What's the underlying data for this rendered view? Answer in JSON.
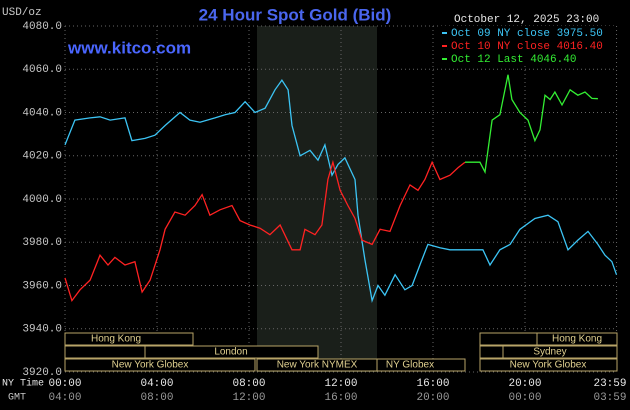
{
  "chart_data": {
    "type": "line",
    "title": "24 Hour Spot Gold (Bid)",
    "url_text": "www.kitco.com",
    "timestamp": "October 12, 2025 23:00",
    "y_label": "USD/oz",
    "x_axis_labels": [
      "NY Time",
      "GMT"
    ],
    "xlim": [
      0,
      24
    ],
    "xticks": [
      {
        "value": 0,
        "label": "00:00"
      },
      {
        "value": 4,
        "label": "04:00"
      },
      {
        "value": 8,
        "label": "08:00"
      },
      {
        "value": 12,
        "label": "12:00"
      },
      {
        "value": 16,
        "label": "16:00"
      },
      {
        "value": 20,
        "label": "20:00"
      },
      {
        "value": 23.98,
        "label": "23:59"
      }
    ],
    "gmt_labels": [
      "04:00",
      "08:00",
      "12:00",
      "16:00",
      "20:00",
      "00:00",
      "03:59"
    ],
    "ylim": [
      3920,
      4080
    ],
    "yticks": [
      {
        "value": 3920,
        "label": "3920.0"
      },
      {
        "value": 3940,
        "label": "3940.0"
      },
      {
        "value": 3960,
        "label": "3960.0"
      },
      {
        "value": 3980,
        "label": "3980.0"
      },
      {
        "value": 4000,
        "label": "4000.0"
      },
      {
        "value": 4020,
        "label": "4020.0"
      },
      {
        "value": 4040,
        "label": "4040.0"
      },
      {
        "value": 4060,
        "label": "4060.0"
      },
      {
        "value": 4080,
        "label": "4080.0"
      }
    ],
    "grid": true,
    "series": [
      {
        "name": "Oct 09 NY close 3975.50",
        "color": "#3cc4f4",
        "x": [
          0,
          0.43,
          1.09,
          1.52,
          1.96,
          2.61,
          2.91,
          3.48,
          3.91,
          4.35,
          5,
          5.43,
          5.87,
          6.52,
          6.96,
          7.39,
          7.83,
          8.26,
          8.7,
          9.13,
          9.43,
          9.7,
          9.87,
          10.22,
          10.65,
          11,
          11.3,
          11.61,
          11.87,
          12.17,
          12.61,
          12.74,
          13.04,
          13.35,
          13.61,
          13.91,
          14.35,
          14.78,
          15.09,
          15.43,
          15.78,
          16.3,
          16.74,
          17.17,
          17.61,
          18.17,
          18.48,
          18.91,
          19.35,
          19.78,
          20.43,
          21,
          21.43,
          21.87,
          22.3,
          22.74,
          23.17,
          23.48,
          23.78,
          23.98
        ],
        "values": [
          4025,
          4036.5,
          4037.5,
          4038,
          4036.5,
          4037.5,
          4027,
          4028,
          4029.5,
          4034,
          4040,
          4036.5,
          4035.5,
          4037.5,
          4039,
          4040,
          4045,
          4040,
          4042,
          4050.5,
          4055,
          4050.5,
          4034,
          4020,
          4022.5,
          4018,
          4025,
          4011,
          4016,
          4019,
          4009,
          3992.5,
          3972,
          3953,
          3960,
          3955.5,
          3965,
          3958,
          3960,
          3969.5,
          3979,
          3977.5,
          3976.5,
          3976.5,
          3976.5,
          3976.5,
          3969.5,
          3976.5,
          3979,
          3986,
          3991,
          3992.5,
          3989.5,
          3976.5,
          3981,
          3985,
          3979,
          3974,
          3971,
          3965
        ]
      },
      {
        "name": "Oct 10 NY close 4016.40",
        "color": "#ff2222",
        "x": [
          0,
          0.3,
          0.65,
          1.09,
          1.52,
          1.87,
          2.17,
          2.61,
          3.04,
          3.35,
          3.7,
          4.13,
          4.35,
          4.78,
          5.22,
          5.65,
          5.96,
          6.3,
          6.74,
          7.26,
          7.61,
          8.04,
          8.48,
          8.91,
          9.35,
          9.87,
          10.22,
          10.43,
          10.87,
          11.17,
          11.43,
          11.65,
          11.96,
          12.3,
          12.61,
          12.91,
          13.35,
          13.7,
          14.13,
          14.57,
          15,
          15.35,
          15.65,
          15.96,
          16.3,
          16.74,
          17.09,
          17.39
        ],
        "values": [
          3963.5,
          3953,
          3958,
          3962.5,
          3974,
          3969.5,
          3973,
          3969.5,
          3971,
          3957,
          3962.5,
          3976.5,
          3986,
          3994,
          3992.5,
          3997,
          4002,
          3992.5,
          3995,
          3997,
          3990,
          3988,
          3986.5,
          3983.5,
          3988,
          3976.5,
          3976.5,
          3986,
          3983.5,
          3988,
          4009,
          4017,
          4004,
          3997,
          3991,
          3981,
          3979,
          3986,
          3985,
          3997,
          4006.5,
          4004,
          4009,
          4017,
          4009,
          4011,
          4014.5,
          4017
        ]
      },
      {
        "name": "Oct 12 Last 4046.40",
        "color": "#33ee33",
        "x": [
          17.39,
          18.04,
          18.26,
          18.57,
          18.91,
          19.26,
          19.43,
          19.78,
          20.13,
          20.43,
          20.65,
          20.87,
          21.09,
          21.3,
          21.61,
          21.96,
          22.3,
          22.61,
          22.91,
          23.17
        ],
        "values": [
          4017,
          4017,
          4012.5,
          4036.5,
          4039,
          4057.5,
          4046,
          4040,
          4036.5,
          4027,
          4032,
          4048,
          4046,
          4049.5,
          4043.5,
          4050.5,
          4048,
          4049.5,
          4046.5,
          4046.4
        ]
      }
    ],
    "sessions": [
      "Hong Kong",
      "Hong Kong",
      "London",
      "Sydney",
      "New York Globex",
      "New York NYMEX",
      "NY Globex",
      "New York Globex"
    ]
  }
}
